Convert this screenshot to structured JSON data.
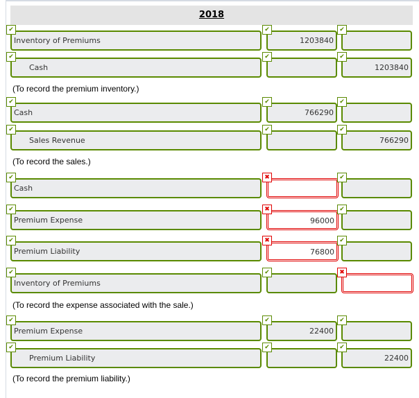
{
  "year": "2018",
  "colors": {
    "correct": "#5a8a00",
    "incorrect": "#e00000"
  },
  "entries": [
    {
      "account": "Inventory of Premiums",
      "indent": false,
      "debit": "1203840",
      "credit": "",
      "status": [
        "check",
        "check",
        "check"
      ]
    },
    {
      "account": "Cash",
      "indent": true,
      "debit": "",
      "credit": "1203840",
      "status": [
        "check",
        "check",
        "check"
      ]
    },
    {
      "note": "(To record the premium inventory.)"
    },
    {
      "account": "Cash",
      "indent": false,
      "debit": "766290",
      "credit": "",
      "status": [
        "check",
        "check",
        "check"
      ]
    },
    {
      "account": "Sales Revenue",
      "indent": true,
      "debit": "",
      "credit": "766290",
      "status": [
        "check",
        "check",
        "check"
      ]
    },
    {
      "note": "(To record the sales.)"
    },
    {
      "account": "Cash",
      "indent": false,
      "debit": "",
      "credit": "",
      "status": [
        "check",
        "x",
        "check"
      ]
    },
    {
      "account": "Premium Expense",
      "indent": false,
      "debit": "96000",
      "credit": "",
      "status": [
        "check",
        "x",
        "check"
      ]
    },
    {
      "account": "Premium Liability",
      "indent": false,
      "debit": "76800",
      "credit": "",
      "status": [
        "check",
        "x",
        "check"
      ]
    },
    {
      "account": "Inventory of Premiums",
      "indent": false,
      "debit": "",
      "credit": "",
      "status": [
        "check",
        "check",
        "x"
      ]
    },
    {
      "note": "(To record the expense associated with the sale.)"
    },
    {
      "account": "Premium Expense",
      "indent": false,
      "debit": "22400",
      "credit": "",
      "status": [
        "check",
        "check",
        "check"
      ]
    },
    {
      "account": "Premium Liability",
      "indent": true,
      "debit": "",
      "credit": "22400",
      "status": [
        "check",
        "check",
        "check"
      ]
    },
    {
      "note": "(To record the premium liability.)"
    }
  ]
}
